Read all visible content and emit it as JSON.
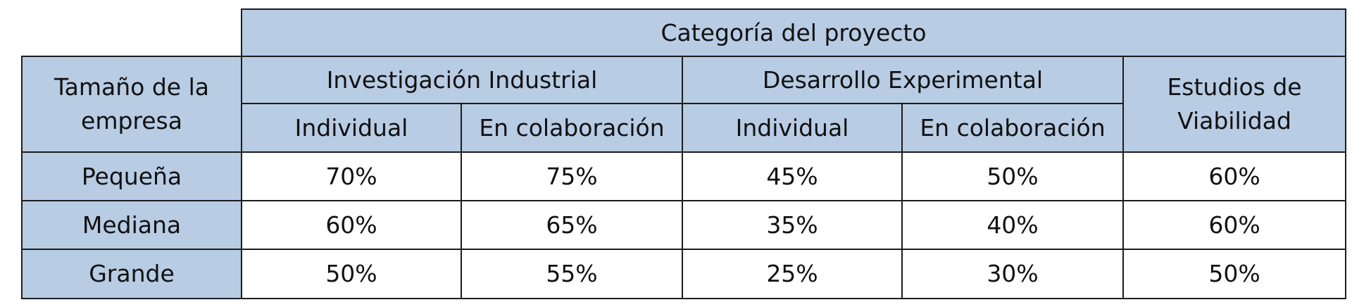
{
  "table": {
    "header": {
      "category_title": "Categoría del proyecto",
      "company_size_label": [
        "Tamaño de la",
        "empresa"
      ],
      "groups": [
        {
          "label": "Investigación Industrial",
          "sub": [
            "Individual",
            "En colaboración"
          ]
        },
        {
          "label": "Desarrollo Experimental",
          "sub": [
            "Individual",
            "En colaboración"
          ]
        }
      ],
      "feasibility_label": [
        "Estudios de",
        "Viabilidad"
      ]
    },
    "rows": [
      {
        "size": "Pequeña",
        "values": [
          "70%",
          "75%",
          "45%",
          "50%",
          "60%"
        ]
      },
      {
        "size": "Mediana",
        "values": [
          "60%",
          "65%",
          "35%",
          "40%",
          "60%"
        ]
      },
      {
        "size": "Grande",
        "values": [
          "50%",
          "55%",
          "25%",
          "30%",
          "50%"
        ]
      }
    ],
    "colors": {
      "header_fill": "#b8cce4",
      "cell_fill": "#ffffff",
      "border": "#1c1c1c"
    }
  }
}
